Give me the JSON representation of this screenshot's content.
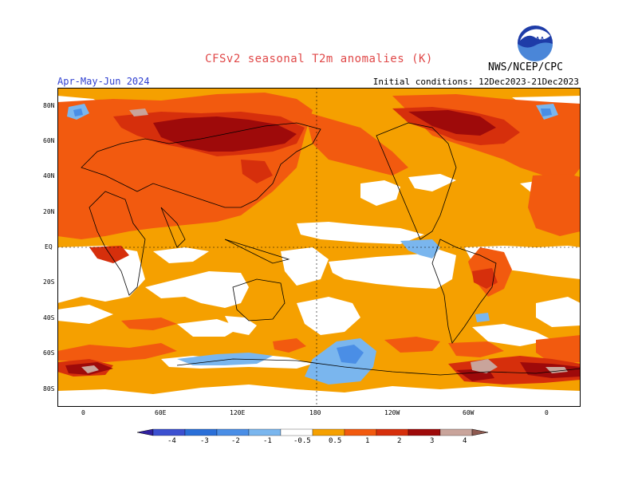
{
  "header": {
    "title": "CFSv2 seasonal T2m anomalies (K)",
    "season": "Apr-May-Jun 2024",
    "initial_conditions": "Initial conditions: 12Dec2023-21Dec2023",
    "agency": "NWS/NCEP/CPC",
    "logo_text": "NOAA"
  },
  "axes": {
    "lat_labels": [
      "80N",
      "60N",
      "40N",
      "20N",
      "EQ",
      "20S",
      "40S",
      "60S",
      "80S"
    ],
    "lon_labels": [
      "0",
      "60E",
      "120E",
      "180",
      "120W",
      "60W",
      "0"
    ]
  },
  "colorbar": {
    "labels": [
      "-4",
      "-3",
      "-2",
      "-1",
      "-0.5",
      "0.5",
      "1",
      "2",
      "3",
      "4"
    ],
    "colors": [
      "#3020a0",
      "#3c50d0",
      "#2a6fd8",
      "#4a8ee6",
      "#7ab6ee",
      "#ffffff",
      "#f5a000",
      "#f25a0f",
      "#d62f0c",
      "#9e0a0a",
      "#c9a49b",
      "#8e5a50"
    ]
  },
  "palette": {
    "ocean_neutral": "#ffffff",
    "warm_light": "#f5a000",
    "warm": "#f25a0f",
    "warm_strong": "#d62f0c",
    "hot": "#9e0a0a",
    "very_hot": "#c9a49b",
    "cool_light": "#7ab6ee",
    "cool": "#4a8ee6"
  }
}
